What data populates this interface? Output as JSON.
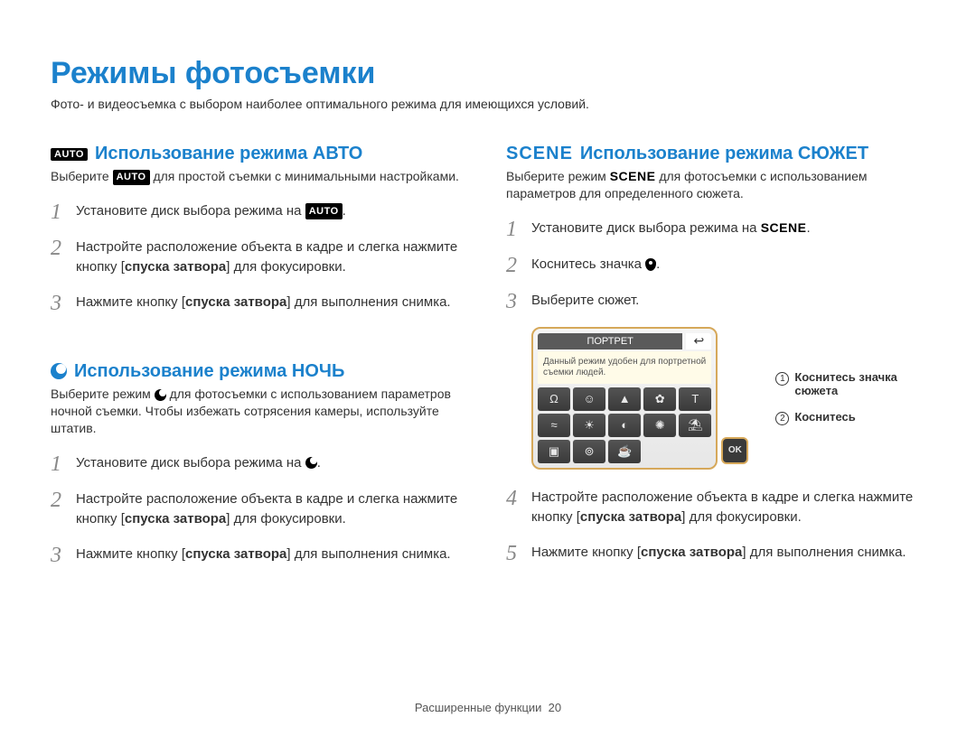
{
  "page_title": "Режимы фотосъемки",
  "subtitle": "Фото- и видеосъемка с выбором наиболее оптимального режима для имеющихся условий.",
  "auto": {
    "badge": "AUTO",
    "heading": "Использование режима АВТО",
    "intro_pre": "Выберите ",
    "intro_post": " для простой съемки с минимальными настройками.",
    "steps": [
      {
        "n": "1",
        "text_pre": "Установите диск выбора режима на ",
        "text_post": "."
      },
      {
        "n": "2",
        "text": "Настройте расположение объекта в кадре и слегка нажмите кнопку [спуска затвора] для фокусировки.",
        "bold": "спуска затвора"
      },
      {
        "n": "3",
        "text": "Нажмите кнопку [спуска затвора] для выполнения снимка.",
        "bold": "спуска затвора"
      }
    ]
  },
  "night": {
    "heading": "Использование режима НОЧЬ",
    "intro": "Выберите режим ⯑ для фотосъемки с использованием параметров ночной съемки. Чтобы избежать сотрясения камеры, используйте штатив.",
    "steps": [
      {
        "n": "1",
        "text": "Установите диск выбора режима на ⯑."
      },
      {
        "n": "2",
        "text": "Настройте расположение объекта в кадре и слегка нажмите кнопку [спуска затвора] для фокусировки.",
        "bold": "спуска затвора"
      },
      {
        "n": "3",
        "text": "Нажмите кнопку [спуска затвора] для выполнения снимка.",
        "bold": "спуска затвора"
      }
    ]
  },
  "scene": {
    "badge": "SCENE",
    "heading": "Использование режима СЮЖЕТ",
    "intro_pre": "Выберите режим ",
    "intro_post": " для фотосъемки с использованием параметров для определенного сюжета.",
    "steps_before": [
      {
        "n": "1",
        "text_pre": "Установите диск выбора режима на ",
        "text_post": "."
      },
      {
        "n": "2",
        "text": "Коснитесь значка ⯑."
      },
      {
        "n": "3",
        "text": "Выберите сюжет."
      }
    ],
    "ui": {
      "title": "ПОРТРЕТ",
      "desc": "Данный режим удобен для портретной съемки людей.",
      "ok": "OK",
      "notes": [
        {
          "n": "1",
          "text": "Коснитесь значка сюжета"
        },
        {
          "n": "2",
          "text": "Коснитесь"
        }
      ]
    },
    "steps_after": [
      {
        "n": "4",
        "text": "Настройте расположение объекта в кадре и слегка нажмите кнопку [спуска затвора] для фокусировки.",
        "bold": "спуска затвора"
      },
      {
        "n": "5",
        "text": "Нажмите кнопку [спуска затвора] для выполнения снимка.",
        "bold": "спуска затвора"
      }
    ]
  },
  "footer": {
    "text": "Расширенные функции",
    "page": "20"
  },
  "colors": {
    "accent": "#1b81cc",
    "outline": "#d6a85a",
    "step_num": "#888888"
  }
}
